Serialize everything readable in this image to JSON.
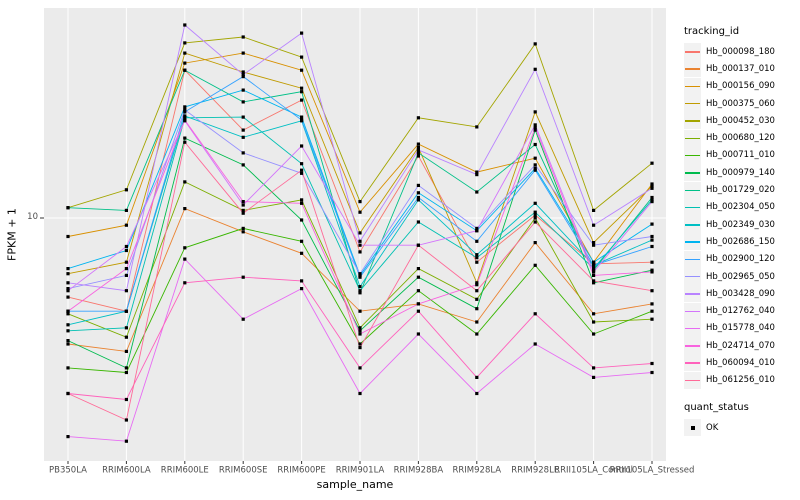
{
  "legend": {
    "tracking_id_title": "tracking_id",
    "quant_status_title": "quant_status",
    "quant_status_items": [
      "OK"
    ]
  },
  "chart_data": {
    "type": "line",
    "xlabel": "sample_name",
    "ylabel": "FPKM + 1",
    "y_scale": "log10",
    "y_ticks": [
      {
        "label": "10",
        "value": 10
      }
    ],
    "ylim": [
      0.85,
      85
    ],
    "grid": "single-horizontal-major-plus-vertical-category-lines",
    "legend_position": "right",
    "panel_bg": "#EBEBEB",
    "grid_color": "#FFFFFF",
    "point_shape": "filled-square",
    "point_color": "#000000",
    "categories": [
      "PB350LA",
      "RRIM600LA",
      "RRIM600LE",
      "RRIM600SE",
      "RRIM600PE",
      "RRIM901LA",
      "RRIM928BA",
      "RRIM928LA",
      "RRIM928LE",
      "RRII105LA_Control",
      "RRII105LA_Stressed"
    ],
    "series": [
      {
        "name": "Hb_000098_180",
        "color": "#F8766D",
        "values": [
          4.5,
          3.9,
          44.5,
          24.3,
          32.9,
          7.1,
          18.7,
          6.4,
          10.3,
          6.3,
          6.4
        ]
      },
      {
        "name": "Hb_000137_010",
        "color": "#EA8331",
        "values": [
          2.8,
          2.6,
          11.0,
          8.7,
          7.0,
          3.9,
          4.2,
          3.5,
          7.8,
          3.8,
          4.2
        ]
      },
      {
        "name": "Hb_000156_090",
        "color": "#D89000",
        "values": [
          8.3,
          9.3,
          47.8,
          52.9,
          44.5,
          10.6,
          21.1,
          15.9,
          18.3,
          6.4,
          14.1
        ]
      },
      {
        "name": "Hb_000375_060",
        "color": "#C09B00",
        "values": [
          5.7,
          6.4,
          52.9,
          43.7,
          37.1,
          8.6,
          20.4,
          5.2,
          29.2,
          7.8,
          13.8
        ]
      },
      {
        "name": "Hb_000452_030",
        "color": "#A3A500",
        "values": [
          11.1,
          13.3,
          58.6,
          62.2,
          50.8,
          11.8,
          27.5,
          25.1,
          58.0,
          10.8,
          17.4
        ]
      },
      {
        "name": "Hb_000680_120",
        "color": "#7CAE00",
        "values": [
          3.8,
          3.0,
          14.4,
          10.8,
          12.0,
          3.3,
          6.0,
          4.4,
          10.0,
          3.5,
          3.6
        ]
      },
      {
        "name": "Hb_000711_010",
        "color": "#39B600",
        "values": [
          2.2,
          2.1,
          7.4,
          9.0,
          7.9,
          2.8,
          4.8,
          3.1,
          6.2,
          3.1,
          3.9
        ]
      },
      {
        "name": "Hb_000979_140",
        "color": "#00BB4E",
        "values": [
          2.9,
          2.2,
          22.4,
          17.1,
          9.8,
          3.2,
          5.5,
          4.0,
          24.3,
          5.2,
          5.9
        ]
      },
      {
        "name": "Hb_001729_020",
        "color": "#00C087",
        "values": [
          11.1,
          10.8,
          44.5,
          32.3,
          35.8,
          4.7,
          19.3,
          13.0,
          21.0,
          5.9,
          12.3
        ]
      },
      {
        "name": "Hb_002304_050",
        "color": "#00C0B2",
        "values": [
          3.2,
          3.3,
          27.5,
          27.7,
          17.3,
          4.8,
          9.6,
          6.7,
          10.6,
          6.0,
          12.0
        ]
      },
      {
        "name": "Hb_002349_030",
        "color": "#00BFC4",
        "values": [
          3.4,
          3.9,
          28.0,
          22.6,
          26.7,
          5.0,
          12.0,
          6.9,
          11.6,
          6.2,
          8.0
        ]
      },
      {
        "name": "Hb_002686_150",
        "color": "#00B4F0",
        "values": [
          6.0,
          7.2,
          30.7,
          36.4,
          27.7,
          5.6,
          12.9,
          8.8,
          16.5,
          6.4,
          9.4
        ]
      },
      {
        "name": "Hb_002900_120",
        "color": "#35A2FF",
        "values": [
          3.9,
          3.9,
          29.2,
          41.7,
          26.9,
          5.5,
          12.3,
          7.9,
          16.2,
          6.2,
          7.5
        ]
      },
      {
        "name": "Hb_002965_050",
        "color": "#9590FF",
        "values": [
          4.9,
          5.6,
          29.8,
          19.3,
          15.7,
          5.7,
          13.9,
          9.0,
          17.1,
          7.6,
          8.3
        ]
      },
      {
        "name": "Hb_003428_090",
        "color": "#B983FF",
        "values": [
          5.2,
          4.8,
          70.2,
          42.5,
          64.7,
          7.9,
          19.9,
          15.5,
          44.9,
          9.3,
          13.5
        ]
      },
      {
        "name": "Hb_012762_040",
        "color": "#D375FB",
        "values": [
          4.8,
          7.5,
          26.7,
          11.4,
          20.7,
          7.6,
          7.6,
          8.8,
          25.6,
          5.8,
          11.8
        ]
      },
      {
        "name": "Hb_015778_040",
        "color": "#E76BF3",
        "values": [
          1.1,
          1.05,
          6.6,
          3.6,
          4.9,
          1.7,
          3.1,
          1.7,
          2.8,
          2.0,
          2.1
        ]
      },
      {
        "name": "Hb_024714_070",
        "color": "#F863DF",
        "values": [
          3.9,
          6.0,
          26.9,
          11.8,
          11.6,
          3.1,
          4.2,
          5.1,
          24.9,
          5.6,
          5.8
        ]
      },
      {
        "name": "Hb_060094_010",
        "color": "#FF62BC",
        "values": [
          1.7,
          1.6,
          5.2,
          5.5,
          5.3,
          2.2,
          3.9,
          2.0,
          3.8,
          2.2,
          2.3
        ]
      },
      {
        "name": "Hb_061256_010",
        "color": "#FF6A98",
        "values": [
          1.7,
          1.3,
          21.5,
          10.5,
          16.2,
          2.7,
          7.6,
          4.8,
          9.6,
          5.3,
          4.8
        ]
      }
    ]
  }
}
